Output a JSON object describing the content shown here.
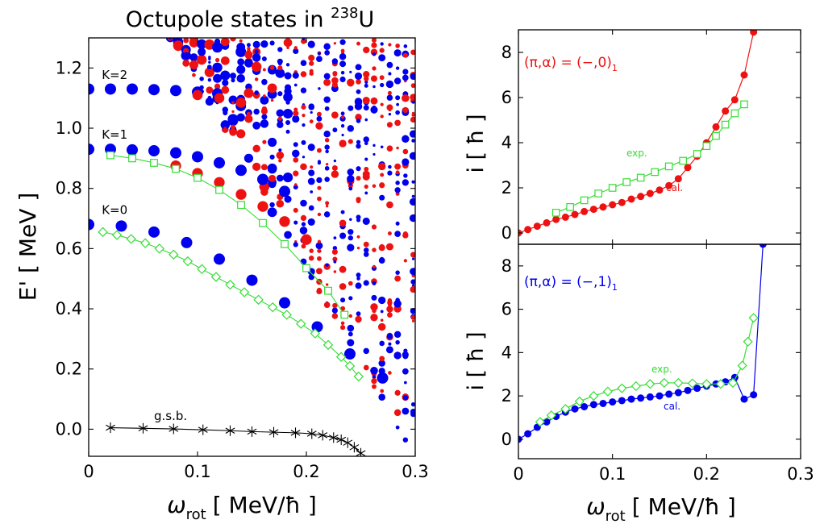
{
  "chart_data": [
    {
      "type": "scatter",
      "title": "Octupole states in ",
      "title_superscript": "238",
      "title_suffix": "U",
      "xlabel_symbol": "ω",
      "xlabel_subscript": "rot",
      "xlabel_unit": "[ MeV/ħ ]",
      "ylabel": "E' [ MeV ]",
      "xlim": [
        0,
        0.3
      ],
      "ylim": [
        -0.09,
        1.3
      ],
      "xticks": [
        0,
        0.1,
        0.2,
        0.3
      ],
      "xtick_labels": [
        "0",
        "0.1",
        "0.2",
        "0.3"
      ],
      "yticks": [
        0.0,
        0.2,
        0.4,
        0.6,
        0.8,
        1.0,
        1.2
      ],
      "ytick_labels": [
        "0.0",
        "0.2",
        "0.4",
        "0.6",
        "0.8",
        "1.0",
        "1.2"
      ],
      "colors": {
        "red": "#ee1111",
        "blue": "#0000ee",
        "green": "#33dd33",
        "black": "#000000"
      },
      "band_labels": [
        {
          "text": "K=2",
          "x": 0.012,
          "y": 1.163
        },
        {
          "text": "K=1",
          "x": 0.012,
          "y": 0.965
        },
        {
          "text": "K=0",
          "x": 0.012,
          "y": 0.715
        },
        {
          "text": "g.s.b.",
          "x": 0.06,
          "y": 0.03
        }
      ],
      "bands": [
        {
          "color": "blue",
          "size": 1.0,
          "x": [
            0,
            0.03,
            0.06,
            0.09,
            0.12,
            0.15,
            0.18,
            0.21,
            0.24,
            0.27
          ],
          "y": [
            0.68,
            0.675,
            0.655,
            0.62,
            0.565,
            0.495,
            0.42,
            0.34,
            0.25,
            0.17
          ]
        },
        {
          "color": "blue",
          "size": 1.0,
          "x": [
            0,
            0.02,
            0.04,
            0.06,
            0.08,
            0.1,
            0.12,
            0.14,
            0.16,
            0.18
          ],
          "y": [
            0.93,
            0.93,
            0.928,
            0.925,
            0.918,
            0.905,
            0.885,
            0.86,
            0.83,
            0.79
          ]
        },
        {
          "color": "red",
          "size": 0.95,
          "x": [
            0.08,
            0.1,
            0.12,
            0.14,
            0.16,
            0.18,
            0.2
          ],
          "y": [
            0.875,
            0.85,
            0.82,
            0.78,
            0.74,
            0.69,
            0.63
          ]
        },
        {
          "color": "blue",
          "size": 1.0,
          "x": [
            0,
            0.02,
            0.04,
            0.06,
            0.08,
            0.1
          ],
          "y": [
            1.13,
            1.13,
            1.13,
            1.128,
            1.125,
            1.12
          ]
        },
        {
          "color": "red",
          "size": 0.9,
          "x": [
            0.1,
            0.12,
            0.14
          ],
          "y": [
            1.11,
            1.1,
            1.085
          ]
        }
      ],
      "dense_region": {
        "x_start": 0.075,
        "x_step": 0.0072,
        "x_end": 0.3,
        "y_min": -0.09,
        "y_max": 1.3,
        "description_seed": 7
      },
      "exp_series": [
        {
          "name": "K=1 exp.",
          "marker": "square",
          "color": "green",
          "x": [
            0.02,
            0.04,
            0.06,
            0.08,
            0.1,
            0.12,
            0.14,
            0.16,
            0.18,
            0.2,
            0.22,
            0.235
          ],
          "y": [
            0.91,
            0.9,
            0.885,
            0.865,
            0.835,
            0.795,
            0.745,
            0.685,
            0.615,
            0.535,
            0.46,
            0.38
          ]
        },
        {
          "name": "K=0 exp.",
          "marker": "diamond",
          "color": "green",
          "x": [
            0.013,
            0.026,
            0.039,
            0.052,
            0.065,
            0.078,
            0.091,
            0.104,
            0.117,
            0.13,
            0.143,
            0.156,
            0.169,
            0.182,
            0.195,
            0.208,
            0.22,
            0.232,
            0.24,
            0.248
          ],
          "y": [
            0.655,
            0.645,
            0.632,
            0.618,
            0.6,
            0.58,
            0.558,
            0.532,
            0.506,
            0.48,
            0.455,
            0.43,
            0.405,
            0.38,
            0.35,
            0.318,
            0.28,
            0.24,
            0.21,
            0.175
          ]
        },
        {
          "name": "g.s.b.",
          "marker": "asterisk",
          "color": "black",
          "x": [
            0.02,
            0.05,
            0.078,
            0.105,
            0.13,
            0.15,
            0.17,
            0.19,
            0.205,
            0.215,
            0.225,
            0.232,
            0.238,
            0.244,
            0.25
          ],
          "y": [
            0.005,
            0.003,
            0.001,
            -0.002,
            -0.005,
            -0.008,
            -0.01,
            -0.012,
            -0.015,
            -0.02,
            -0.028,
            -0.035,
            -0.045,
            -0.06,
            -0.08
          ]
        }
      ]
    },
    {
      "type": "line",
      "xlim": [
        0,
        0.3
      ],
      "ylim": [
        -0.5,
        9
      ],
      "yticks": [
        0,
        2,
        4,
        6,
        8
      ],
      "ytick_labels": [
        "0",
        "2",
        "4",
        "6",
        "8"
      ],
      "ylabel": "i [ ħ ]",
      "annotation_symbol": "(π,α) = (−,0)",
      "annotation_subscript": "1",
      "annotation_color": "#ee1111",
      "exp_label": "exp.",
      "cal_label": "cal.",
      "series": [
        {
          "name": "cal.",
          "color": "#ee1111",
          "marker": "circle",
          "x": [
            0,
            0.01,
            0.02,
            0.03,
            0.04,
            0.05,
            0.06,
            0.07,
            0.08,
            0.09,
            0.1,
            0.11,
            0.12,
            0.13,
            0.14,
            0.15,
            0.16,
            0.17,
            0.18,
            0.19,
            0.2,
            0.21,
            0.22,
            0.23,
            0.24,
            0.25
          ],
          "y": [
            0,
            0.15,
            0.3,
            0.45,
            0.6,
            0.7,
            0.82,
            0.95,
            1.05,
            1.15,
            1.25,
            1.35,
            1.5,
            1.62,
            1.75,
            1.9,
            2.1,
            2.4,
            2.9,
            3.4,
            4.0,
            4.7,
            5.4,
            5.9,
            7.0,
            8.9
          ]
        },
        {
          "name": "exp.",
          "color": "#33dd33",
          "marker": "square",
          "x": [
            0.04,
            0.055,
            0.07,
            0.085,
            0.1,
            0.115,
            0.13,
            0.145,
            0.16,
            0.175,
            0.19,
            0.2,
            0.21,
            0.22,
            0.23,
            0.24
          ],
          "y": [
            0.9,
            1.15,
            1.45,
            1.75,
            2.0,
            2.25,
            2.45,
            2.7,
            2.95,
            3.2,
            3.5,
            3.85,
            4.3,
            4.8,
            5.3,
            5.7
          ]
        }
      ]
    },
    {
      "type": "line",
      "xlim": [
        0,
        0.3
      ],
      "ylim": [
        -0.9,
        9
      ],
      "xticks": [
        0,
        0.1,
        0.2,
        0.3
      ],
      "xtick_labels": [
        "0",
        "0.1",
        "0.2",
        "0.3"
      ],
      "yticks": [
        0,
        2,
        4,
        6,
        8
      ],
      "ytick_labels": [
        "0",
        "2",
        "4",
        "6",
        "8"
      ],
      "ylabel": "i [ ħ ]",
      "xlabel_symbol": "ω",
      "xlabel_subscript": "rot",
      "xlabel_unit": "[ MeV/ħ ]",
      "annotation_symbol": "(π,α) = (−,1)",
      "annotation_subscript": "1",
      "annotation_color": "#0000ee",
      "exp_label": "exp.",
      "cal_label": "cal.",
      "series": [
        {
          "name": "cal.",
          "color": "#0000ee",
          "marker": "circle",
          "x": [
            0,
            0.01,
            0.02,
            0.03,
            0.04,
            0.05,
            0.06,
            0.07,
            0.08,
            0.09,
            0.1,
            0.11,
            0.12,
            0.13,
            0.14,
            0.15,
            0.16,
            0.17,
            0.18,
            0.19,
            0.2,
            0.21,
            0.22,
            0.23,
            0.24,
            0.25,
            0.26
          ],
          "y": [
            0,
            0.25,
            0.55,
            0.8,
            1.05,
            1.25,
            1.4,
            1.5,
            1.6,
            1.65,
            1.72,
            1.78,
            1.85,
            1.9,
            1.95,
            2.0,
            2.08,
            2.15,
            2.25,
            2.35,
            2.45,
            2.55,
            2.65,
            2.85,
            1.85,
            2.05,
            9.0
          ]
        },
        {
          "name": "exp.",
          "color": "#33dd33",
          "marker": "diamond",
          "x": [
            0.023,
            0.035,
            0.05,
            0.065,
            0.08,
            0.095,
            0.11,
            0.125,
            0.14,
            0.155,
            0.17,
            0.185,
            0.2,
            0.215,
            0.228,
            0.238,
            0.244,
            0.25
          ],
          "y": [
            0.8,
            1.1,
            1.4,
            1.75,
            2.0,
            2.2,
            2.35,
            2.45,
            2.55,
            2.6,
            2.6,
            2.58,
            2.55,
            2.55,
            2.6,
            3.4,
            4.5,
            5.6
          ]
        }
      ]
    }
  ]
}
